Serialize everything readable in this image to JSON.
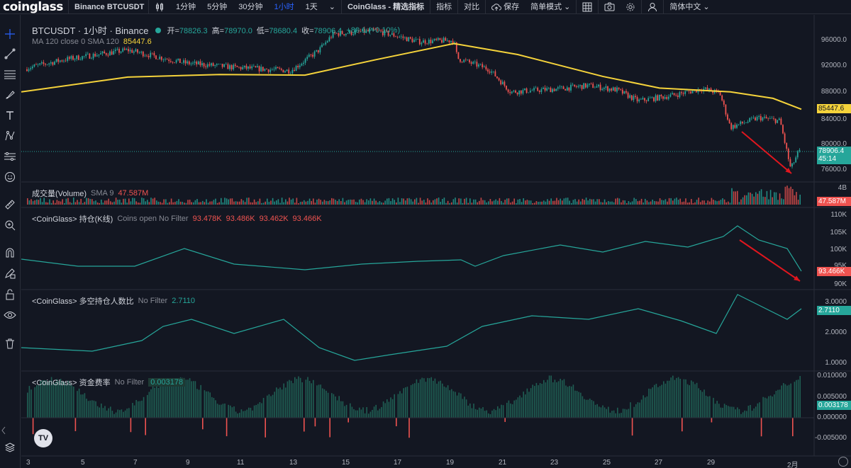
{
  "topbar": {
    "logo": "coinglass",
    "symbol": "Binance BTCUSDT",
    "intervals": [
      "1分钟",
      "5分钟",
      "30分钟",
      "1小时",
      "1天"
    ],
    "active_interval": "1小时",
    "indicators_label": "CoinGlass - 精选指标",
    "indicator_btn": "指标",
    "compare_btn": "对比",
    "save_btn": "保存",
    "mode_btn": "简单模式",
    "language_btn": "简体中文"
  },
  "main": {
    "title": "BTCUSDT · 1小时 · Binance",
    "open_label": "开=",
    "open_val": "78826.3",
    "high_label": "高=",
    "high_val": "78970.0",
    "low_label": "低=",
    "low_val": "78680.4",
    "close_label": "收=",
    "close_val": "78906.4",
    "change": "+80.1 (+0.10%)",
    "ma_label": "MA 120 close 0 SMA 120",
    "ma_val": "85447.6",
    "price_ticks": [
      "96000.0",
      "92000.0",
      "88000.0",
      "84000.0",
      "80000.0",
      "76000.0"
    ],
    "ma_tag": "85447.6",
    "last_price_tag": "78906.4",
    "countdown": "45:14"
  },
  "volume": {
    "label": "成交量(Volume)",
    "sma": "SMA 9",
    "value": "47.587M",
    "tick": "4B",
    "tag": "47.587M"
  },
  "oi": {
    "label": "<CoinGlass> 持仓(K线)",
    "sub": "Coins open No Filter",
    "v1": "93.478K",
    "v2": "93.486K",
    "v3": "93.462K",
    "v4": "93.466K",
    "ticks": [
      "110K",
      "105K",
      "100K",
      "95K",
      "90K"
    ],
    "tag": "93.466K"
  },
  "ls": {
    "label": "<CoinGlass> 多空持仓人数比",
    "sub": "No Filter",
    "value": "2.7110",
    "ticks": [
      "3.0000",
      "2.0000",
      "1.0000"
    ],
    "tag": "2.7110"
  },
  "funding": {
    "label": "<CoinGlass> 资金费率",
    "sub": "No Filter",
    "value": "0.003178",
    "ticks": [
      "0.010000",
      "0.005000",
      "0.000000",
      "-0.005000"
    ],
    "tag": "0.003178"
  },
  "x_axis": [
    "3",
    "5",
    "7",
    "9",
    "11",
    "13",
    "15",
    "17",
    "19",
    "21",
    "23",
    "25",
    "27",
    "29",
    "2月"
  ],
  "colors": {
    "up": "#26a69a",
    "down": "#ef5350",
    "ma": "#f5d33b",
    "bg": "#131722",
    "grid": "#1e222d",
    "accent": "#2962ff",
    "arrow": "#e0161e"
  },
  "icons": {
    "left_tools": [
      "crosshair-icon",
      "trend-line-icon",
      "horizontal-lines-icon",
      "brush-icon",
      "text-icon",
      "pattern-icon",
      "measure-icon",
      "emoji-icon",
      "ruler-icon",
      "zoom-in-icon",
      "magnet-icon",
      "lock-pencil-icon",
      "lock-icon",
      "eye-icon",
      "trash-icon"
    ]
  },
  "watermark": "TV"
}
